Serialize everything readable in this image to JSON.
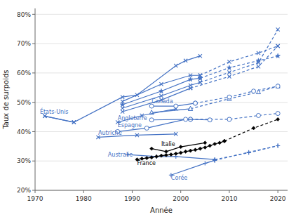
{
  "chart_data": {
    "type": "line",
    "x_label": "Année",
    "y_label": "Taux de surpoids",
    "xlim": [
      1970,
      2022
    ],
    "ylim": [
      0.2,
      0.82
    ],
    "xticks": [
      1970,
      1980,
      1990,
      2000,
      2010,
      2020
    ],
    "yticks": [
      {
        "value": 0.2,
        "label": "20%"
      },
      {
        "value": 0.3,
        "label": "30%"
      },
      {
        "value": 0.4,
        "label": "40%"
      },
      {
        "value": 0.5,
        "label": "50%"
      },
      {
        "value": 0.6,
        "label": "60%"
      },
      {
        "value": 0.7,
        "label": "70%"
      },
      {
        "value": 0.8,
        "label": "80%"
      }
    ],
    "grid": "y",
    "series": [
      {
        "x": [
          1972,
          1978,
          1988,
          1991,
          1999,
          2001,
          2004
        ],
        "values": [
          0.453,
          0.432,
          0.518,
          0.525,
          0.625,
          0.642,
          0.658
        ],
        "color": "#4472C4",
        "marker": "x",
        "line_style": "solid"
      },
      {
        "x": [
          1988,
          1996,
          2002,
          2004
        ],
        "values": [
          0.503,
          0.562,
          0.592,
          0.592
        ],
        "color": "#4472C4",
        "marker": "x",
        "line_style": "solid"
      },
      {
        "x": [
          2004,
          2010,
          2016,
          2020
        ],
        "values": [
          0.592,
          0.638,
          0.668,
          0.692
        ],
        "color": "#4472C4",
        "marker": "x",
        "line_style": "dashed"
      },
      {
        "x": [
          1988,
          1996,
          2002,
          2004
        ],
        "values": [
          0.492,
          0.538,
          0.578,
          0.582
        ],
        "color": "#4472C4",
        "marker": "star",
        "line_style": "solid"
      },
      {
        "x": [
          2004,
          2010,
          2016,
          2020
        ],
        "values": [
          0.582,
          0.618,
          0.642,
          0.658
        ],
        "color": "#4472C4",
        "marker": "star",
        "line_style": "dashed"
      },
      {
        "x": [
          1988,
          1996,
          2002,
          2004
        ],
        "values": [
          0.48,
          0.522,
          0.558,
          0.568
        ],
        "color": "#4472C4",
        "marker": "x",
        "line_style": "solid"
      },
      {
        "x": [
          2004,
          2010,
          2016,
          2020
        ],
        "values": [
          0.568,
          0.602,
          0.635,
          0.748
        ],
        "color": "#4472C4",
        "marker": "x",
        "line_style": "dashed"
      },
      {
        "x": [
          1988,
          1996,
          2002
        ],
        "values": [
          0.468,
          0.508,
          0.548
        ],
        "color": "#4472C4",
        "marker": "x",
        "line_style": "solid"
      },
      {
        "x": [
          2002,
          2010,
          2016,
          2020
        ],
        "values": [
          0.548,
          0.588,
          0.622,
          0.692
        ],
        "color": "#4472C4",
        "marker": "x",
        "line_style": "dashed"
      },
      {
        "x": [
          1994,
          2002
        ],
        "values": [
          0.465,
          0.478
        ],
        "color": "#4472C4",
        "marker": "triangle",
        "line_style": "solid"
      },
      {
        "x": [
          2002,
          2010,
          2016,
          2020
        ],
        "values": [
          0.478,
          0.512,
          0.535,
          0.555
        ],
        "color": "#4472C4",
        "marker": "triangle",
        "line_style": "dashed"
      },
      {
        "x": [
          1994,
          2002
        ],
        "values": [
          0.44,
          0.442
        ],
        "color": "#4472C4",
        "marker": "circle",
        "line_style": "solid"
      },
      {
        "x": [
          2002,
          2010,
          2016,
          2020
        ],
        "values": [
          0.442,
          0.442,
          0.455,
          0.462
        ],
        "color": "#4472C4",
        "marker": "circle",
        "line_style": "dashed"
      },
      {
        "x": [
          1972,
          1978
        ],
        "values": [
          0.453,
          0.432
        ],
        "color": "#4472C4",
        "marker": "x",
        "line_style": "solid"
      },
      {
        "x": [
          1987,
          1992,
          1999
        ],
        "values": [
          0.432,
          0.455,
          0.478
        ],
        "color": "#4472C4",
        "marker": "x",
        "line_style": "solid"
      },
      {
        "x": [
          1987,
          1993,
          2001,
          2006
        ],
        "values": [
          0.4,
          0.412,
          0.442,
          0.44
        ],
        "color": "#4472C4",
        "marker": "circle",
        "line_style": "solid"
      },
      {
        "x": [
          1983,
          1991,
          1999
        ],
        "values": [
          0.381,
          0.388,
          0.392
        ],
        "color": "#4472C4",
        "marker": "x",
        "line_style": "solid"
      },
      {
        "x": [
          1994,
          1999,
          2003
        ],
        "values": [
          0.487,
          0.487,
          0.497
        ],
        "color": "#4472C4",
        "marker": "circle",
        "line_style": "solid"
      },
      {
        "x": [
          2003,
          2010,
          2015,
          2020
        ],
        "values": [
          0.497,
          0.518,
          0.538,
          0.555
        ],
        "color": "#4472C4",
        "marker": "circle",
        "line_style": "dashed"
      },
      {
        "x": [
          1989,
          1995,
          1999,
          2007
        ],
        "values": [
          0.322,
          0.315,
          0.315,
          0.305
        ],
        "color": "#4472C4",
        "marker": "plus",
        "line_style": "solid"
      },
      {
        "x": [
          2007,
          2014,
          2020
        ],
        "values": [
          0.305,
          0.328,
          0.352
        ],
        "color": "#4472C4",
        "marker": "plus",
        "line_style": "dashed"
      },
      {
        "x": [
          1998,
          2005,
          2007
        ],
        "values": [
          0.252,
          0.292,
          0.302
        ],
        "color": "#4472C4",
        "marker": "plus",
        "line_style": "solid"
      },
      {
        "x": [
          2007,
          2014,
          2020
        ],
        "values": [
          0.302,
          0.33,
          0.352
        ],
        "color": "#4472C4",
        "marker": "plus",
        "line_style": "dashed"
      },
      {
        "x": [
          1994,
          1997,
          2000,
          2005
        ],
        "values": [
          0.342,
          0.332,
          0.348,
          0.362
        ],
        "color": "#000000",
        "marker": "diamond",
        "line_style": "solid"
      },
      {
        "x": [
          1991,
          1992,
          1993,
          1994,
          1995,
          1996,
          1997,
          1998,
          1999,
          2000,
          2001,
          2002,
          2003,
          2004,
          2005,
          2006,
          2007,
          2008,
          2009
        ],
        "values": [
          0.305,
          0.308,
          0.31,
          0.312,
          0.315,
          0.318,
          0.32,
          0.322,
          0.325,
          0.328,
          0.332,
          0.335,
          0.338,
          0.342,
          0.346,
          0.352,
          0.358,
          0.362,
          0.368
        ],
        "color": "#000000",
        "marker": "diamond",
        "line_style": "solid"
      },
      {
        "x": [
          2009,
          2015,
          2020
        ],
        "values": [
          0.368,
          0.412,
          0.442
        ],
        "color": "#000000",
        "marker": "diamond",
        "line_style": "dashed"
      }
    ],
    "annotations": [
      {
        "text": "États-Unis",
        "x": 1971,
        "y": 0.468,
        "color": "#4472C4"
      },
      {
        "text": "Angleterre",
        "x": 1987,
        "y": 0.447,
        "color": "#4472C4"
      },
      {
        "text": "Espagne",
        "x": 1987,
        "y": 0.421,
        "color": "#4472C4"
      },
      {
        "text": "Autriche",
        "x": 1983,
        "y": 0.397,
        "color": "#4472C4"
      },
      {
        "text": "Canada",
        "x": 1994,
        "y": 0.504,
        "color": "#4472C4"
      },
      {
        "text": "Australie",
        "x": 1985,
        "y": 0.322,
        "color": "#4472C4"
      },
      {
        "text": "Corée",
        "x": 1998,
        "y": 0.242,
        "color": "#4472C4"
      },
      {
        "text": "Italie",
        "x": 1996,
        "y": 0.358,
        "color": "#000000"
      },
      {
        "text": "France",
        "x": 1991,
        "y": 0.292,
        "color": "#000000"
      }
    ]
  }
}
